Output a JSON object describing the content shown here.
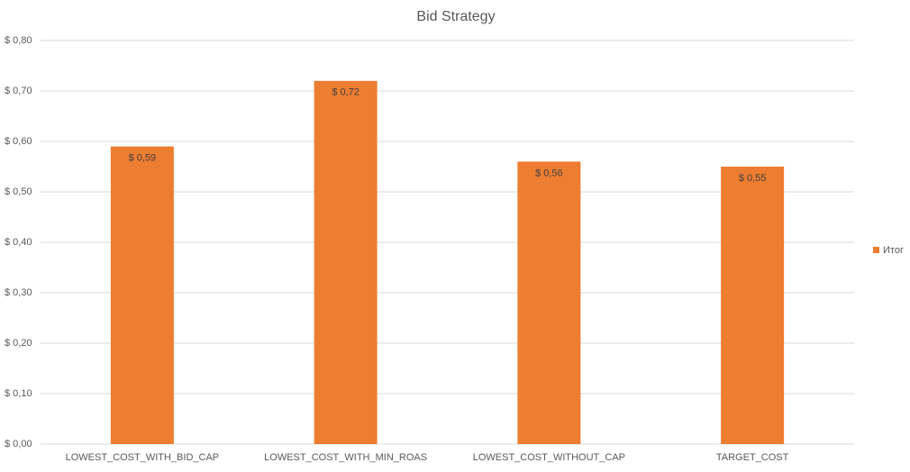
{
  "chart_data": {
    "type": "bar",
    "title": "Bid Strategy",
    "categories": [
      "LOWEST_COST_WITH_BID_CAP",
      "LOWEST_COST_WITH_MIN_ROAS",
      "LOWEST_COST_WITHOUT_CAP",
      "TARGET_COST"
    ],
    "series": [
      {
        "name": "Итог",
        "color": "#ed7d31",
        "values": [
          0.59,
          0.72,
          0.56,
          0.55
        ],
        "value_labels": [
          "$ 0,59",
          "$ 0,72",
          "$ 0,56",
          "$ 0,55"
        ]
      }
    ],
    "ylim": [
      0,
      0.8
    ],
    "yticks": [
      {
        "value": 0,
        "label": "$ 0,00"
      },
      {
        "value": 0.1,
        "label": "$ 0,10"
      },
      {
        "value": 0.2,
        "label": "$ 0,20"
      },
      {
        "value": 0.3,
        "label": "$ 0,30"
      },
      {
        "value": 0.4,
        "label": "$ 0,40"
      },
      {
        "value": 0.5,
        "label": "$ 0,50"
      },
      {
        "value": 0.6,
        "label": "$ 0,60"
      },
      {
        "value": 0.7,
        "label": "$ 0,70"
      },
      {
        "value": 0.8,
        "label": "$ 0,80"
      }
    ],
    "grid": true,
    "legend": "right"
  }
}
